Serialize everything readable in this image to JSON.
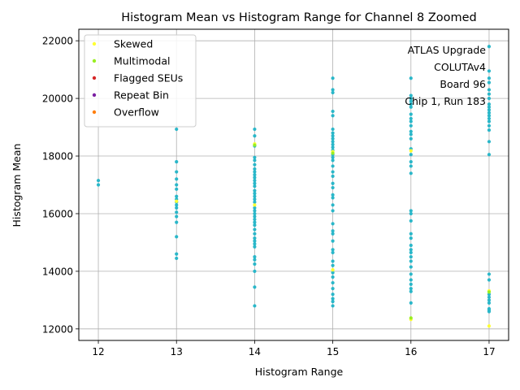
{
  "chart_data": {
    "type": "scatter",
    "title": "Histogram Mean vs Histogram Range for Channel 8 Zoomed",
    "xlabel": "Histogram Range",
    "ylabel": "Histogram Mean",
    "xlim": [
      11.75,
      17.25
    ],
    "ylim": [
      11600,
      22400
    ],
    "xticks": [
      12,
      13,
      14,
      15,
      16,
      17
    ],
    "yticks": [
      12000,
      14000,
      16000,
      18000,
      20000,
      22000
    ],
    "grid": true,
    "legend_position": "top-left",
    "annotation": [
      "ATLAS Upgrade",
      "COLUTAv4",
      "Board 96",
      "Chip 1, Run 183"
    ],
    "series": [
      {
        "name": "Skewed",
        "color": "#ffff33",
        "points": [
          [
            14,
            18420
          ],
          [
            14,
            16300
          ],
          [
            15,
            18150
          ],
          [
            15,
            14050
          ],
          [
            16,
            18180
          ],
          [
            16,
            12330
          ],
          [
            17,
            12100
          ],
          [
            17,
            13320
          ],
          [
            13,
            16430
          ]
        ]
      },
      {
        "name": "Multimodal",
        "color": "#99ee22",
        "points": [
          [
            14,
            18380
          ],
          [
            15,
            18100
          ],
          [
            16,
            12380
          ],
          [
            17,
            13280
          ]
        ]
      },
      {
        "name": "Flagged SEUs",
        "color": "#d62728",
        "points": []
      },
      {
        "name": "Repeat Bin",
        "color": "#7b1fa2",
        "points": []
      },
      {
        "name": "Overflow",
        "color": "#ff7f0e",
        "points": []
      },
      {
        "name": "",
        "color": "#2ab7c9",
        "points": [
          [
            12,
            17150
          ],
          [
            12,
            17000
          ],
          [
            13,
            18930
          ],
          [
            13,
            17800
          ],
          [
            13,
            17450
          ],
          [
            13,
            17200
          ],
          [
            13,
            17000
          ],
          [
            13,
            16850
          ],
          [
            13,
            16600
          ],
          [
            13,
            16500
          ],
          [
            13,
            16400
          ],
          [
            13,
            16300
          ],
          [
            13,
            16200
          ],
          [
            13,
            16050
          ],
          [
            13,
            15900
          ],
          [
            13,
            15700
          ],
          [
            13,
            15200
          ],
          [
            13,
            14600
          ],
          [
            13,
            14450
          ],
          [
            14,
            18930
          ],
          [
            14,
            18700
          ],
          [
            14,
            18350
          ],
          [
            14,
            17950
          ],
          [
            14,
            17850
          ],
          [
            14,
            17700
          ],
          [
            14,
            17550
          ],
          [
            14,
            17450
          ],
          [
            14,
            17350
          ],
          [
            14,
            17250
          ],
          [
            14,
            17150
          ],
          [
            14,
            17050
          ],
          [
            14,
            16950
          ],
          [
            14,
            16800
          ],
          [
            14,
            16700
          ],
          [
            14,
            16600
          ],
          [
            14,
            16500
          ],
          [
            14,
            16400
          ],
          [
            14,
            16200
          ],
          [
            14,
            16100
          ],
          [
            14,
            16000
          ],
          [
            14,
            15900
          ],
          [
            14,
            15800
          ],
          [
            14,
            15700
          ],
          [
            14,
            15600
          ],
          [
            14,
            15450
          ],
          [
            14,
            15300
          ],
          [
            14,
            15150
          ],
          [
            14,
            15050
          ],
          [
            14,
            14950
          ],
          [
            14,
            14850
          ],
          [
            14,
            14500
          ],
          [
            14,
            14400
          ],
          [
            14,
            14250
          ],
          [
            14,
            14000
          ],
          [
            14,
            13450
          ],
          [
            14,
            12800
          ],
          [
            15,
            20700
          ],
          [
            15,
            20300
          ],
          [
            15,
            20200
          ],
          [
            15,
            19550
          ],
          [
            15,
            19400
          ],
          [
            15,
            18930
          ],
          [
            15,
            18800
          ],
          [
            15,
            18700
          ],
          [
            15,
            18600
          ],
          [
            15,
            18500
          ],
          [
            15,
            18400
          ],
          [
            15,
            18300
          ],
          [
            15,
            18200
          ],
          [
            15,
            18050
          ],
          [
            15,
            17950
          ],
          [
            15,
            17850
          ],
          [
            15,
            17650
          ],
          [
            15,
            17450
          ],
          [
            15,
            17300
          ],
          [
            15,
            17050
          ],
          [
            15,
            16900
          ],
          [
            15,
            16650
          ],
          [
            15,
            16550
          ],
          [
            15,
            16300
          ],
          [
            15,
            16100
          ],
          [
            15,
            15650
          ],
          [
            15,
            15400
          ],
          [
            15,
            15300
          ],
          [
            15,
            15050
          ],
          [
            15,
            14750
          ],
          [
            15,
            14650
          ],
          [
            15,
            14350
          ],
          [
            15,
            14200
          ],
          [
            15,
            13950
          ],
          [
            15,
            13800
          ],
          [
            15,
            13600
          ],
          [
            15,
            13400
          ],
          [
            15,
            13200
          ],
          [
            15,
            13050
          ],
          [
            15,
            12950
          ],
          [
            15,
            12800
          ],
          [
            16,
            20700
          ],
          [
            16,
            20100
          ],
          [
            16,
            20000
          ],
          [
            16,
            19900
          ],
          [
            16,
            19800
          ],
          [
            16,
            19700
          ],
          [
            16,
            19450
          ],
          [
            16,
            19300
          ],
          [
            16,
            19200
          ],
          [
            16,
            19050
          ],
          [
            16,
            18850
          ],
          [
            16,
            18750
          ],
          [
            16,
            18600
          ],
          [
            16,
            18250
          ],
          [
            16,
            18050
          ],
          [
            16,
            17800
          ],
          [
            16,
            17650
          ],
          [
            16,
            17400
          ],
          [
            16,
            16100
          ],
          [
            16,
            16000
          ],
          [
            16,
            15750
          ],
          [
            16,
            15300
          ],
          [
            16,
            15150
          ],
          [
            16,
            14900
          ],
          [
            16,
            14750
          ],
          [
            16,
            14650
          ],
          [
            16,
            14500
          ],
          [
            16,
            14350
          ],
          [
            16,
            14150
          ],
          [
            16,
            13900
          ],
          [
            16,
            13700
          ],
          [
            16,
            13550
          ],
          [
            16,
            13400
          ],
          [
            16,
            13300
          ],
          [
            16,
            12900
          ],
          [
            17,
            21800
          ],
          [
            17,
            20950
          ],
          [
            17,
            20700
          ],
          [
            17,
            20550
          ],
          [
            17,
            20300
          ],
          [
            17,
            20150
          ],
          [
            17,
            20000
          ],
          [
            17,
            19800
          ],
          [
            17,
            19700
          ],
          [
            17,
            19600
          ],
          [
            17,
            19500
          ],
          [
            17,
            19400
          ],
          [
            17,
            19300
          ],
          [
            17,
            19200
          ],
          [
            17,
            19050
          ],
          [
            17,
            18900
          ],
          [
            17,
            18500
          ],
          [
            17,
            18050
          ],
          [
            17,
            13900
          ],
          [
            17,
            13700
          ],
          [
            17,
            13200
          ],
          [
            17,
            13100
          ],
          [
            17,
            13000
          ],
          [
            17,
            12900
          ],
          [
            17,
            12700
          ],
          [
            17,
            12650
          ],
          [
            17,
            12600
          ]
        ]
      }
    ]
  }
}
